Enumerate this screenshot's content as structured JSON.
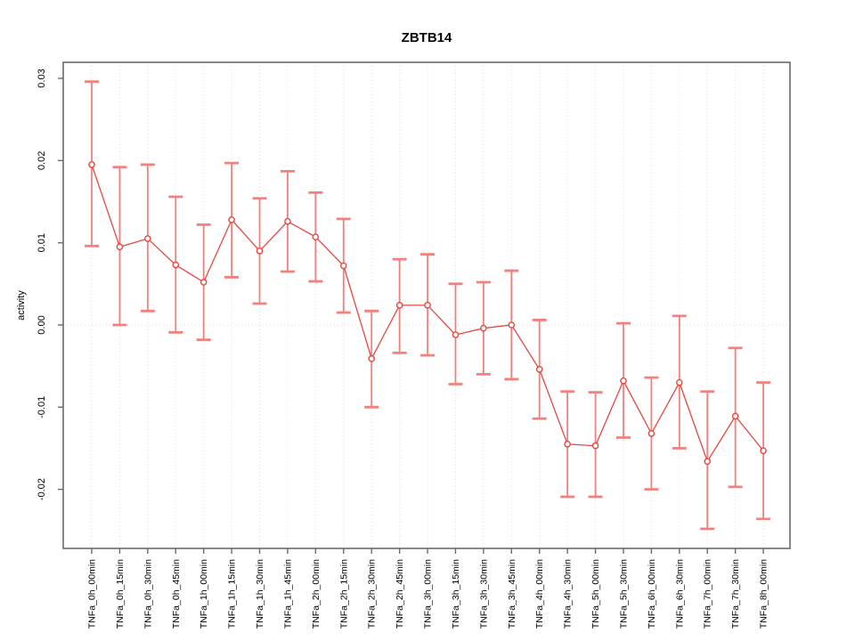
{
  "chart_data": {
    "type": "line",
    "title": "ZBTB14",
    "xlabel": "",
    "ylabel": "activity",
    "legend": "none",
    "grid": "dotted vertical gridline at every category; dotted horizontal gridline at y=0",
    "ylim": [
      -0.027,
      0.032
    ],
    "yticks": [
      0.03,
      0.02,
      0.01,
      0.0,
      -0.01,
      -0.02
    ],
    "categories": [
      "TNFa_0h_00min",
      "TNFa_0h_15min",
      "TNFa_0h_30min",
      "TNFa_0h_45min",
      "TNFa_1h_00min",
      "TNFa_1h_15min",
      "TNFa_1h_30min",
      "TNFa_1h_45min",
      "TNFa_2h_00min",
      "TNFa_2h_15min",
      "TNFa_2h_30min",
      "TNFa_2h_45min",
      "TNFa_3h_00min",
      "TNFa_3h_15min",
      "TNFa_3h_30min",
      "TNFa_3h_45min",
      "TNFa_4h_00min",
      "TNFa_4h_30min",
      "TNFa_5h_00min",
      "TNFa_5h_30min",
      "TNFa_6h_00min",
      "TNFa_6h_30min",
      "TNFa_7h_00min",
      "TNFa_7h_30min",
      "TNFa_8h_00min"
    ],
    "series": [
      {
        "name": "activity",
        "marker": "open-circle",
        "values": [
          0.0195,
          0.0095,
          0.0105,
          0.0073,
          0.0052,
          0.0128,
          0.009,
          0.0126,
          0.0107,
          0.0072,
          -0.0041,
          0.0024,
          0.0024,
          -0.0012,
          -0.0004,
          0.0,
          -0.0054,
          -0.0145,
          -0.0147,
          -0.0068,
          -0.0132,
          -0.007,
          -0.0166,
          -0.0111,
          -0.0153
        ],
        "error_lower": [
          0.0096,
          0.0,
          0.0017,
          -0.0009,
          -0.0018,
          0.0058,
          0.0026,
          0.0065,
          0.0053,
          0.0015,
          -0.01,
          -0.0034,
          -0.0037,
          -0.0072,
          -0.006,
          -0.0066,
          -0.0114,
          -0.0209,
          -0.0209,
          -0.0137,
          -0.02,
          -0.015,
          -0.0248,
          -0.0197,
          -0.0236
        ],
        "error_upper": [
          0.0296,
          0.0192,
          0.0195,
          0.0156,
          0.0122,
          0.0197,
          0.0154,
          0.0187,
          0.0161,
          0.0129,
          0.0017,
          0.008,
          0.0086,
          0.005,
          0.0052,
          0.0066,
          0.0006,
          -0.0081,
          -0.0082,
          0.0002,
          -0.0064,
          0.0011,
          -0.0081,
          -0.0028,
          -0.007
        ]
      }
    ],
    "colors": {
      "point": "#e8463f",
      "line": "#e8463f",
      "errorbar": "#f3807c",
      "grid": "#dcdcdc",
      "axis": "#6b6b6b",
      "text": "#000000",
      "background": "#ffffff"
    }
  }
}
